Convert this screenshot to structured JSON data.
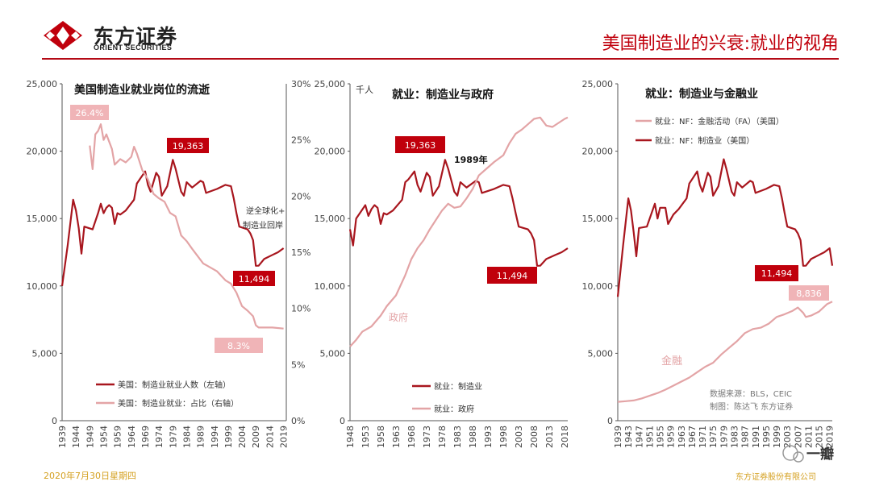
{
  "header": {
    "company_cn": "东方证券",
    "company_en": "ORIENT SECURITIES",
    "title": "美国制造业的兴衰:就业的视角"
  },
  "footer": {
    "date": "2020年7月30日星期四",
    "company": "东方证券股份有限公司"
  },
  "watermark": "一瓣",
  "colors": {
    "dark": "#a8161e",
    "light": "#e3a4a6",
    "label_dark": "#c0000c",
    "label_light": "#f0b4b7"
  },
  "chart_data": [
    {
      "type": "line",
      "title": "美国制造业就业岗位的流逝",
      "unit": "",
      "x_ticks": [
        "1939",
        "1944",
        "1949",
        "1954",
        "1959",
        "1964",
        "1969",
        "1974",
        "1979",
        "1984",
        "1989",
        "1994",
        "1999",
        "2004",
        "2009",
        "2014",
        "2019"
      ],
      "y_left_ticks": [
        "0",
        "5,000",
        "10,000",
        "15,000",
        "20,000",
        "25,000"
      ],
      "y_right_ticks": [
        "0%",
        "5%",
        "10%",
        "15%",
        "20%",
        "25%",
        "30%"
      ],
      "ylim_left": [
        0,
        25000
      ],
      "ylim_right": [
        0,
        30
      ],
      "xlim": [
        1939,
        2020
      ],
      "series": [
        {
          "name": "美国：制造业就业人数（左轴）",
          "axis": "left",
          "color": "#a8161e",
          "x": [
            1939,
            1941,
            1943,
            1944,
            1945,
            1946,
            1947,
            1950,
            1952,
            1953,
            1954,
            1955,
            1956,
            1957,
            1958,
            1959,
            1960,
            1962,
            1965,
            1966,
            1967,
            1969,
            1970,
            1971,
            1973,
            1974,
            1975,
            1977,
            1979,
            1980,
            1982,
            1983,
            1984,
            1986,
            1989,
            1990,
            1991,
            1995,
            1998,
            2000,
            2001,
            2002,
            2003,
            2006,
            2007,
            2008,
            2009,
            2010,
            2012,
            2015,
            2017,
            2019
          ],
          "values": [
            10000,
            13000,
            16400,
            15600,
            14300,
            12400,
            14400,
            14200,
            15400,
            16100,
            15400,
            15800,
            16000,
            15800,
            14600,
            15400,
            15300,
            15600,
            16400,
            17600,
            17900,
            18500,
            17500,
            17000,
            18400,
            18100,
            16700,
            17400,
            19363,
            18700,
            17000,
            16700,
            17700,
            17300,
            17800,
            17700,
            16900,
            17200,
            17500,
            17400,
            16500,
            15400,
            14400,
            14200,
            13900,
            13400,
            11494,
            11500,
            12000,
            12300,
            12500,
            12800
          ]
        },
        {
          "name": "美国：制造业就业：占比（右轴）",
          "axis": "right",
          "color": "#e3a4a6",
          "x": [
            1949,
            1950,
            1951,
            1952,
            1953,
            1954,
            1955,
            1957,
            1958,
            1960,
            1962,
            1964,
            1965,
            1966,
            1968,
            1970,
            1972,
            1974,
            1976,
            1978,
            1980,
            1982,
            1984,
            1986,
            1990,
            1995,
            1998,
            2000,
            2002,
            2004,
            2006,
            2008,
            2009,
            2010,
            2015,
            2019
          ],
          "values": [
            24.5,
            22.4,
            25.5,
            25.8,
            26.4,
            25.0,
            25.5,
            24.2,
            22.8,
            23.3,
            23.0,
            23.5,
            24.4,
            23.8,
            22.3,
            21.5,
            20.2,
            19.8,
            19.5,
            18.5,
            18.2,
            16.5,
            16.0,
            15.3,
            14.0,
            13.3,
            12.5,
            12.2,
            11.4,
            10.2,
            9.8,
            9.3,
            8.5,
            8.3,
            8.3,
            8.2
          ]
        }
      ],
      "data_labels": [
        "26.4%",
        "19,363",
        "11,494",
        "8.3%"
      ],
      "annotations": [
        "逆全球化+",
        "制造业回岸"
      ]
    },
    {
      "type": "line",
      "title": "就业：制造业与政府",
      "unit": "千人",
      "x_ticks": [
        "1948",
        "1953",
        "1958",
        "1963",
        "1968",
        "1973",
        "1978",
        "1983",
        "1988",
        "1993",
        "1998",
        "2003",
        "2008",
        "2013",
        "2018"
      ],
      "y_left_ticks": [
        "0",
        "5,000",
        "10,000",
        "15,000",
        "20,000",
        "25,000"
      ],
      "ylim_left": [
        0,
        25000
      ],
      "xlim": [
        1948,
        2019
      ],
      "series": [
        {
          "name": "就业：制造业",
          "axis": "left",
          "color": "#a8161e",
          "x": [
            1948,
            1949,
            1950,
            1953,
            1954,
            1955,
            1956,
            1957,
            1958,
            1959,
            1960,
            1962,
            1965,
            1966,
            1967,
            1969,
            1970,
            1971,
            1973,
            1974,
            1975,
            1977,
            1979,
            1980,
            1982,
            1983,
            1984,
            1986,
            1989,
            1990,
            1991,
            1995,
            1998,
            2000,
            2001,
            2002,
            2003,
            2006,
            2007,
            2008,
            2009,
            2010,
            2012,
            2015,
            2017,
            2019
          ],
          "values": [
            14200,
            13000,
            15000,
            16000,
            15200,
            15700,
            16000,
            15800,
            14600,
            15400,
            15300,
            15600,
            16400,
            17700,
            17900,
            18500,
            17500,
            17000,
            18400,
            18100,
            16700,
            17400,
            19363,
            18700,
            17000,
            16700,
            17700,
            17300,
            17800,
            17700,
            16900,
            17200,
            17500,
            17400,
            16500,
            15400,
            14400,
            14200,
            13900,
            13400,
            11494,
            11500,
            12000,
            12300,
            12500,
            12800
          ]
        },
        {
          "name": "就业：政府",
          "axis": "left",
          "color": "#e3a4a6",
          "x": [
            1948,
            1950,
            1952,
            1955,
            1958,
            1960,
            1963,
            1966,
            1968,
            1970,
            1972,
            1974,
            1976,
            1978,
            1980,
            1982,
            1984,
            1986,
            1988,
            1990,
            1992,
            1995,
            1998,
            2000,
            2002,
            2004,
            2006,
            2008,
            2010,
            2012,
            2014,
            2016,
            2018,
            2019
          ],
          "values": [
            5500,
            6000,
            6600,
            7000,
            7800,
            8500,
            9300,
            10800,
            12000,
            12800,
            13400,
            14200,
            14900,
            15600,
            16100,
            15800,
            15900,
            16500,
            17200,
            18200,
            18600,
            19200,
            19700,
            20600,
            21300,
            21600,
            22000,
            22400,
            22500,
            21900,
            21800,
            22100,
            22400,
            22500
          ]
        }
      ],
      "data_labels": [
        "19,363",
        "11,494"
      ],
      "annotations": [
        "1989年",
        "政府"
      ]
    },
    {
      "type": "line",
      "title": "就业：制造业与金融业",
      "unit": "",
      "x_ticks": [
        "1939",
        "1943",
        "1947",
        "1951",
        "1955",
        "1959",
        "1963",
        "1967",
        "1971",
        "1975",
        "1979",
        "1983",
        "1987",
        "1991",
        "1995",
        "1999",
        "2003",
        "2007",
        "2011",
        "2015",
        "2019"
      ],
      "y_left_ticks": [
        "0",
        "5,000",
        "10,000",
        "15,000",
        "20,000",
        "25,000"
      ],
      "ylim_left": [
        0,
        25000
      ],
      "xlim": [
        1939,
        2020
      ],
      "series": [
        {
          "name": "就业：NF：金融活动（FA）（美国）",
          "axis": "left",
          "color": "#e3a4a6",
          "x": [
            1939,
            1942,
            1945,
            1948,
            1951,
            1954,
            1957,
            1960,
            1963,
            1966,
            1969,
            1972,
            1975,
            1978,
            1981,
            1984,
            1987,
            1990,
            1993,
            1996,
            1999,
            2002,
            2005,
            2007,
            2009,
            2010,
            2012,
            2015,
            2018,
            2020
          ],
          "values": [
            1400,
            1450,
            1500,
            1650,
            1850,
            2050,
            2300,
            2600,
            2900,
            3200,
            3600,
            4000,
            4300,
            4900,
            5400,
            5900,
            6500,
            6800,
            6900,
            7200,
            7700,
            7900,
            8150,
            8400,
            8000,
            7700,
            7800,
            8100,
            8650,
            8836
          ]
        },
        {
          "name": "就业：NF：制造业（美国）",
          "axis": "left",
          "color": "#a8161e",
          "x": [
            1939,
            1941,
            1943,
            1944,
            1945,
            1946,
            1947,
            1950,
            1953,
            1954,
            1955,
            1957,
            1958,
            1960,
            1962,
            1965,
            1966,
            1967,
            1969,
            1970,
            1971,
            1973,
            1974,
            1975,
            1977,
            1979,
            1980,
            1982,
            1983,
            1984,
            1986,
            1989,
            1990,
            1991,
            1995,
            1998,
            2000,
            2001,
            2002,
            2003,
            2006,
            2007,
            2008,
            2009,
            2010,
            2012,
            2015,
            2017,
            2019,
            2020
          ],
          "values": [
            9200,
            13000,
            16500,
            15600,
            14000,
            12200,
            14300,
            14400,
            16100,
            15000,
            15800,
            15800,
            14600,
            15300,
            15700,
            16500,
            17600,
            17900,
            18500,
            17500,
            17000,
            18400,
            18100,
            16700,
            17400,
            19400,
            18700,
            17000,
            16700,
            17700,
            17300,
            17800,
            17700,
            16900,
            17200,
            17500,
            17400,
            16500,
            15400,
            14400,
            14200,
            13900,
            13400,
            11494,
            11500,
            12000,
            12300,
            12500,
            12800,
            11500
          ]
        }
      ],
      "data_labels": [
        "11,494",
        "8,836"
      ],
      "annotations": [
        "金融",
        "数据来源：BLS，CEIC",
        "制图：陈达飞 东方证券"
      ]
    }
  ]
}
